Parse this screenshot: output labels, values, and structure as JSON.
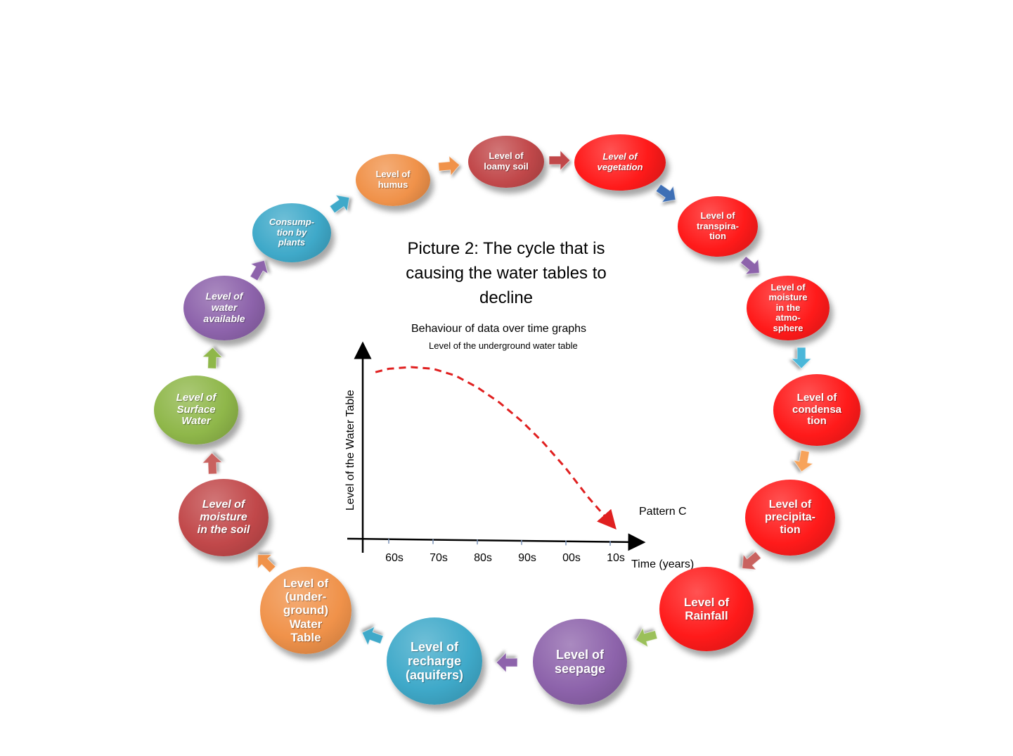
{
  "title": "Picture 2:  The cycle that is causing the water tables to decline",
  "nodes": [
    {
      "id": "humus",
      "label": "Level of\nhumus",
      "color": "#f0924a",
      "italic": false
    },
    {
      "id": "loamy-soil",
      "label": "Level of\nloamy soil",
      "color": "#c1484a",
      "italic": false
    },
    {
      "id": "vegetation",
      "label": "Level of\nvegetation",
      "color": "#ff1a1a",
      "italic": true
    },
    {
      "id": "transpiration",
      "label": "Level of\ntranspira-\ntion",
      "color": "#ff1a1a",
      "italic": false
    },
    {
      "id": "moisture-atmosphere",
      "label": "Level of\nmoisture\nin the\natmo-\nsphere",
      "color": "#ff1a1a",
      "italic": false
    },
    {
      "id": "condensation",
      "label": "Level of\ncondensa\ntion",
      "color": "#ff1a1a",
      "italic": false
    },
    {
      "id": "precipitation",
      "label": "Level of\nprecipita-\ntion",
      "color": "#ff1a1a",
      "italic": false
    },
    {
      "id": "rainfall",
      "label": "Level of\nRainfall",
      "color": "#ff1a1a",
      "italic": false
    },
    {
      "id": "seepage",
      "label": "Level of\nseepage",
      "color": "#8d63ab",
      "italic": false
    },
    {
      "id": "recharge",
      "label": "Level of\nrecharge\n(aquifers)",
      "color": "#3fa9c9",
      "italic": false
    },
    {
      "id": "water-table",
      "label": "Level of\n(under-\nground)\nWater\nTable",
      "color": "#f0924a",
      "italic": false
    },
    {
      "id": "moisture-soil",
      "label": "Level of\nmoisture\nin the soil",
      "color": "#c1484a",
      "italic": true
    },
    {
      "id": "surface-water",
      "label": "Level of\nSurface\nWater",
      "color": "#8fb74a",
      "italic": true
    },
    {
      "id": "water-available",
      "label": "Level of\nwater\navailable",
      "color": "#8d63ab",
      "italic": true
    },
    {
      "id": "consumption",
      "label": "Consump-\ntion by\nplants",
      "color": "#3fa9c9",
      "italic": true
    }
  ],
  "arrows": [
    {
      "id": "humus-to-loamy",
      "color": "#f0924a"
    },
    {
      "id": "loamy-to-vegetation",
      "color": "#c1484a"
    },
    {
      "id": "vegetation-to-transpiration",
      "color": "#3e6fb5"
    },
    {
      "id": "transpiration-to-atmosphere",
      "color": "#8d63ab"
    },
    {
      "id": "atmosphere-to-condensation",
      "color": "#4bb7d9"
    },
    {
      "id": "condensation-to-precipitation",
      "color": "#f7a35a"
    },
    {
      "id": "precipitation-to-rainfall",
      "color": "#c9625f"
    },
    {
      "id": "rainfall-to-seepage",
      "color": "#9bc05a"
    },
    {
      "id": "seepage-to-recharge",
      "color": "#8d63ab"
    },
    {
      "id": "recharge-to-water-table",
      "color": "#3fa9c9"
    },
    {
      "id": "water-table-to-moisture-soil",
      "color": "#f0924a"
    },
    {
      "id": "moisture-soil-to-surface",
      "color": "#c9625f"
    },
    {
      "id": "surface-to-water-available",
      "color": "#8fb74a"
    },
    {
      "id": "water-available-to-consumption",
      "color": "#8d63ab"
    },
    {
      "id": "consumption-to-humus",
      "color": "#3fa9c9"
    }
  ],
  "chart": {
    "heading": "Behaviour of data over time graphs",
    "subheading": "Level of the underground water table",
    "ylabel": "Level of the Water Table",
    "xlabel": "Time (years)",
    "ticks": [
      "60s",
      "70s",
      "80s",
      "90s",
      "00s",
      "10s"
    ],
    "pattern_label": "Pattern C",
    "line_color": "#e02020"
  },
  "chart_data": {
    "type": "line",
    "title": "Behaviour of data over time graphs",
    "subtitle": "Level of the underground water table",
    "xlabel": "Time (years)",
    "ylabel": "Level of the Water Table",
    "categories": [
      "60s",
      "70s",
      "80s",
      "90s",
      "00s",
      "10s"
    ],
    "series": [
      {
        "name": "Pattern C",
        "x": [
          0.2,
          0.5,
          1.0,
          1.5,
          2.0,
          2.5,
          3.0,
          3.5,
          4.0,
          4.5,
          5.0,
          5.5
        ],
        "y": [
          0.92,
          0.94,
          0.95,
          0.94,
          0.9,
          0.83,
          0.74,
          0.63,
          0.5,
          0.35,
          0.18,
          0.03
        ]
      }
    ],
    "legend": "none",
    "grid": false
  }
}
